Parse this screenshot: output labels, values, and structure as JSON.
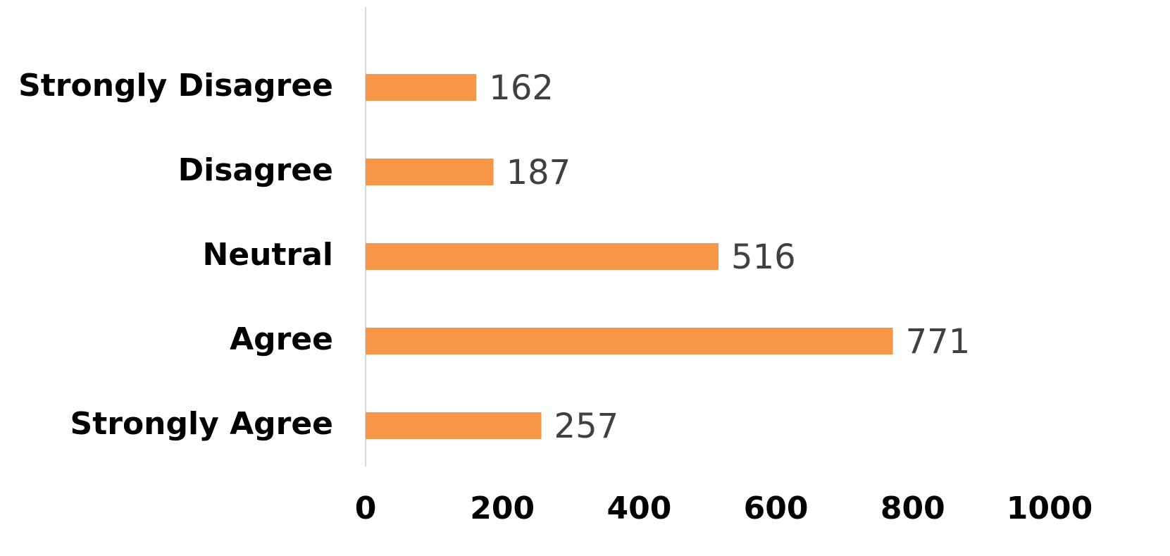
{
  "chart_data": {
    "type": "bar",
    "orientation": "horizontal",
    "categories": [
      "Strongly Disagree",
      "Disagree",
      "Neutral",
      "Agree",
      "Strongly Agree"
    ],
    "values": [
      162,
      187,
      516,
      771,
      257
    ],
    "color": "#f79646",
    "xlim": [
      0,
      1000
    ],
    "xticks": [
      0,
      200,
      400,
      600,
      800,
      1000
    ],
    "grid": false
  }
}
